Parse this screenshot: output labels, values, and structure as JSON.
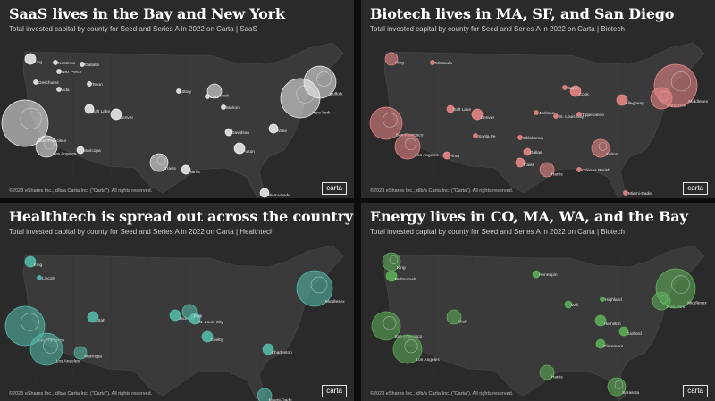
{
  "copyright": "©2023 eShares Inc., d/b/a Carta Inc. (\"Carta\"). All rights reserved.",
  "logo": "carta",
  "panels": [
    {
      "title": "SaaS lives in the Bay and New York",
      "subtitle": "Total invested capital by county for Seed and Series A in 2022 on Carta | SaaS",
      "color": "#f2f2f2",
      "labels": [
        "King",
        "Kootenai",
        "Gallatin",
        "Nez Perce",
        "Deschutes",
        "Teton",
        "Ada",
        "Cook",
        "Story",
        "Marion",
        "Lake",
        "Suffolk",
        "New York",
        "Davidson",
        "Wake",
        "Fulton",
        "Travis",
        "Harris",
        "San Francisco",
        "Los Angeles",
        "Maricopa",
        "Salt Lake",
        "Denver",
        "Miami-Dade"
      ]
    },
    {
      "title": "Biotech lives in MA, SF, and San Diego",
      "subtitle": "Total invested capital by county for Seed and Series A in 2022 on Carta | Biotech",
      "color": "#f08a8a",
      "labels": [
        "King",
        "Missoula",
        "Salt Lake",
        "Denver",
        "Santa Fe",
        "Oklahoma",
        "Dallas",
        "Travis",
        "Harris",
        "Jackson",
        "St. Louis City",
        "Cook",
        "Dane",
        "Allegheny",
        "New York",
        "Middlesex",
        "Tippecanoe",
        "Fulton",
        "Orleans Parish",
        "Miami-Dade",
        "San Francisco",
        "Los Angeles",
        "Pima"
      ]
    },
    {
      "title": "Healthtech is spread out across the country",
      "subtitle": "Total invested capital by county for Seed and Series A in 2022 on Carta | Healthtech",
      "color": "#56bfae",
      "labels": [
        "King",
        "Lincoln",
        "Utah",
        "Jackson",
        "St. Louis City",
        "Polk",
        "Shelby",
        "Charleston",
        "Middlesex",
        "San Francisco",
        "Los Angeles",
        "Maricopa",
        "Miami-Dade"
      ]
    },
    {
      "title": "Energy lives in CO, MA, WA, and the Bay",
      "subtitle": "Total invested capital by county for Seed and Series A in 2022 on Carta | Biotech",
      "color": "#5fb45a",
      "labels": [
        "King",
        "Multnomah",
        "Hennepin",
        "Utah",
        "Will",
        "Highland",
        "Hamilton",
        "Guilford",
        "Claremont",
        "New York",
        "Middlesex",
        "Harris",
        "Sarasota",
        "San Francisco",
        "Los Angeles"
      ]
    }
  ]
}
